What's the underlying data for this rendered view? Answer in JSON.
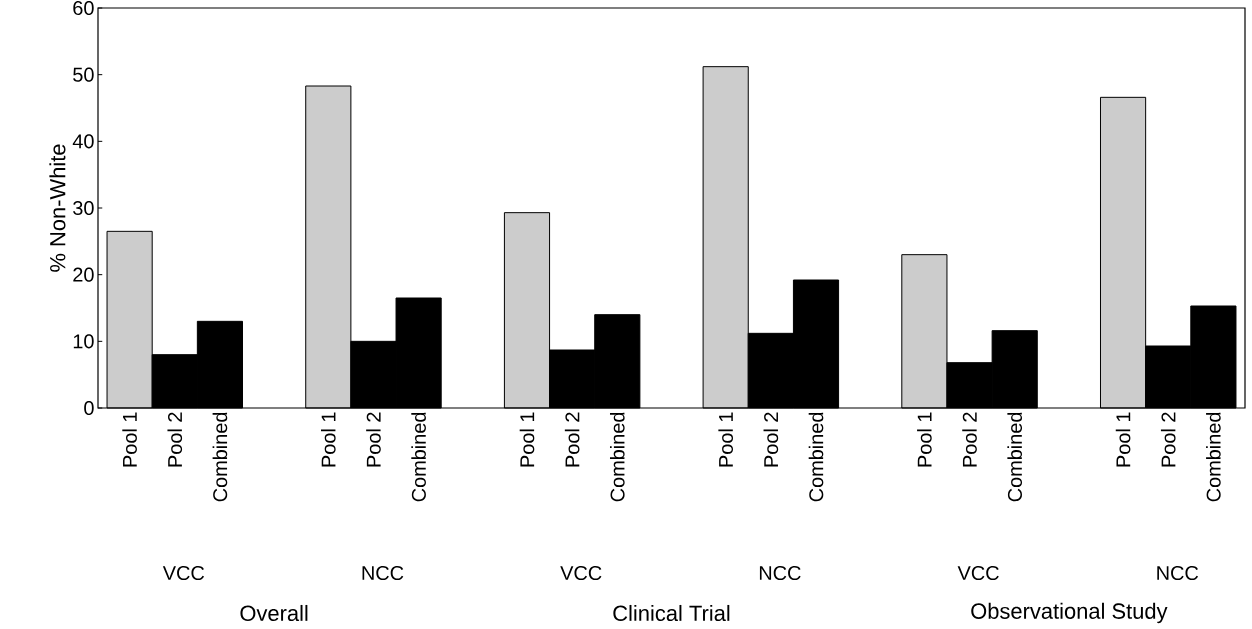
{
  "chart_data": {
    "type": "bar",
    "ylabel": "% Non-White",
    "categories": [
      "Pool 1",
      "Pool 2",
      "Combined",
      "Pool 1",
      "Pool 2",
      "Combined",
      "Pool 1",
      "Pool 2",
      "Combined",
      "Pool 1",
      "Pool 2",
      "Combined",
      "Pool 1",
      "Pool 2",
      "Combined",
      "Pool 1",
      "Pool 2",
      "Combined"
    ],
    "values": [
      26.5,
      8,
      13,
      48.3,
      10,
      16.5,
      29.3,
      8.7,
      14,
      51.2,
      11.2,
      19.2,
      23,
      6.8,
      11.6,
      46.6,
      9.3,
      15.3
    ],
    "colors": [
      "#cccccc",
      "#000000",
      "#000000",
      "#cccccc",
      "#000000",
      "#000000",
      "#cccccc",
      "#000000",
      "#000000",
      "#cccccc",
      "#000000",
      "#000000",
      "#cccccc",
      "#000000",
      "#000000",
      "#cccccc",
      "#000000",
      "#000000"
    ],
    "ylim": [
      0,
      60
    ],
    "yticks": [
      0,
      10,
      20,
      30,
      40,
      50,
      60
    ],
    "annotations": [
      "VCC",
      "NCC",
      "VCC",
      "NCC",
      "VCC",
      "NCC",
      "Overall",
      "Clinical Trial",
      "Observational Study"
    ]
  }
}
